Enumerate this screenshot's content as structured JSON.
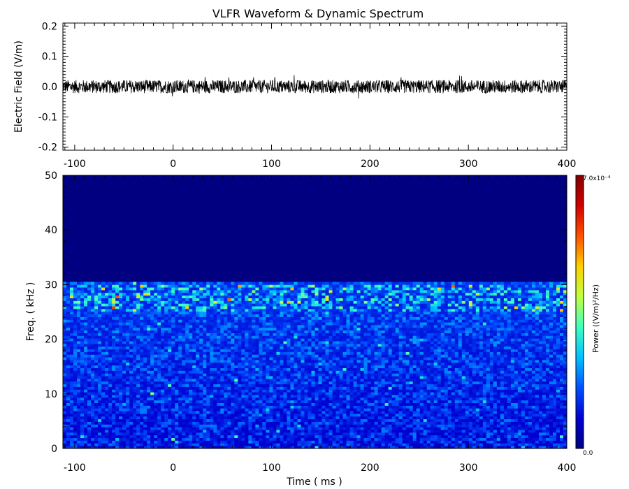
{
  "title": "VLFR Waveform & Dynamic Spectrum",
  "chart_data": [
    {
      "type": "line",
      "title": "VLFR Waveform & Dynamic Spectrum",
      "ylabel": "Electric Field  (V/m)",
      "xlabel": "",
      "xlim": [
        -112,
        400
      ],
      "ylim": [
        -0.21,
        0.21
      ],
      "x_ticks": [
        -100,
        0,
        100,
        200,
        300,
        400
      ],
      "y_ticks": [
        -0.2,
        -0.1,
        0.0,
        0.1,
        0.2
      ],
      "x_tick_labels": [
        "-100",
        "0",
        "100",
        "200",
        "300",
        "400"
      ],
      "y_tick_labels": [
        "-0.2",
        "-0.1",
        "0.0",
        "0.1",
        "0.2"
      ],
      "series": [
        {
          "values_summary": {
            "mean": 0.0,
            "typical_range": [
              -0.02,
              0.02
            ],
            "spike_min": -0.045,
            "spike_max": 0.04
          }
        }
      ],
      "color": "#000000"
    },
    {
      "type": "heatmap",
      "xlabel": "Time ( ms )",
      "ylabel": "Freq. ( kHz )",
      "xlim": [
        -112,
        400
      ],
      "ylim": [
        0,
        50
      ],
      "x_ticks": [
        -100,
        0,
        100,
        200,
        300,
        400
      ],
      "y_ticks": [
        0,
        10,
        20,
        30,
        40,
        50
      ],
      "x_tick_labels": [
        "-100",
        "0",
        "100",
        "200",
        "300",
        "400"
      ],
      "y_tick_labels": [
        "0",
        "10",
        "20",
        "30",
        "40",
        "50"
      ],
      "signal_band_khz": [
        0,
        30.5
      ],
      "bright_band_khz": [
        25,
        30
      ],
      "colorbar": {
        "label": "Power   ((V/m)²/Hz)",
        "min_label": "0.0",
        "max_label": "7.0x10⁻⁴",
        "min": 0.0,
        "max": 0.0007,
        "colormap": [
          "#000080",
          "#0000d0",
          "#0050ff",
          "#00c0ff",
          "#40ffc0",
          "#c0ff40",
          "#ffd000",
          "#ff5000",
          "#d00000",
          "#800000"
        ]
      }
    }
  ]
}
